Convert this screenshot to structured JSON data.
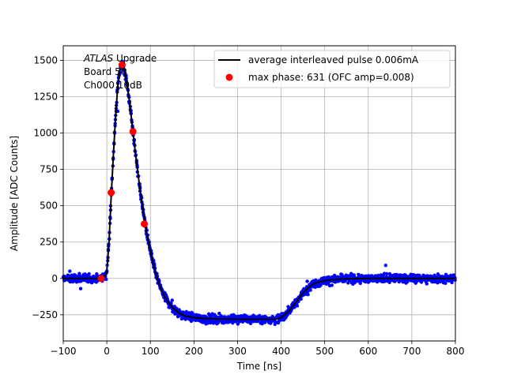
{
  "chart_data": {
    "type": "scatter",
    "xlabel": "Time [ns]",
    "ylabel": "Amplitude [ADC Counts]",
    "xlim": [
      -100,
      800
    ],
    "ylim": [
      -430,
      1600
    ],
    "grid": true,
    "x_ticks": [
      -100,
      0,
      100,
      200,
      300,
      400,
      500,
      600,
      700,
      800
    ],
    "y_ticks": [
      -250,
      0,
      250,
      500,
      750,
      1000,
      1250,
      1500
    ],
    "annotation": {
      "italic": "ATLAS",
      "line1_rest": " Upgrade",
      "line2": "Board 50",
      "line3": "Ch000 10dB"
    },
    "legend": {
      "placement": "top-right",
      "entries": [
        {
          "label": "average interleaved pulse 0.006mA",
          "marker": "line",
          "color": "#000000"
        },
        {
          "label": "max phase: 631 (OFC amp=0.008)",
          "marker": "dot",
          "color": "#ff0000"
        }
      ]
    },
    "series": [
      {
        "kind": "scatter-band",
        "color": "#0000ff",
        "noise": 20,
        "points": [
          [
            -100,
            0
          ],
          [
            -20,
            0
          ],
          [
            -5,
            10
          ],
          [
            0,
            50
          ],
          [
            5,
            250
          ],
          [
            10,
            560
          ],
          [
            15,
            850
          ],
          [
            20,
            1100
          ],
          [
            25,
            1320
          ],
          [
            30,
            1440
          ],
          [
            35,
            1480
          ],
          [
            40,
            1440
          ],
          [
            45,
            1360
          ],
          [
            50,
            1260
          ],
          [
            55,
            1140
          ],
          [
            60,
            1010
          ],
          [
            65,
            880
          ],
          [
            70,
            760
          ],
          [
            75,
            640
          ],
          [
            80,
            530
          ],
          [
            85,
            430
          ],
          [
            90,
            340
          ],
          [
            95,
            260
          ],
          [
            100,
            190
          ],
          [
            105,
            120
          ],
          [
            110,
            60
          ],
          [
            120,
            -40
          ],
          [
            130,
            -110
          ],
          [
            140,
            -160
          ],
          [
            150,
            -200
          ],
          [
            160,
            -225
          ],
          [
            170,
            -245
          ],
          [
            180,
            -258
          ],
          [
            200,
            -270
          ],
          [
            220,
            -275
          ],
          [
            250,
            -278
          ],
          [
            300,
            -280
          ],
          [
            350,
            -280
          ],
          [
            390,
            -279
          ],
          [
            400,
            -270
          ],
          [
            410,
            -245
          ],
          [
            420,
            -215
          ],
          [
            430,
            -180
          ],
          [
            440,
            -140
          ],
          [
            450,
            -100
          ],
          [
            460,
            -70
          ],
          [
            470,
            -45
          ],
          [
            480,
            -30
          ],
          [
            500,
            -15
          ],
          [
            520,
            -8
          ],
          [
            550,
            -3
          ],
          [
            600,
            0
          ],
          [
            700,
            0
          ],
          [
            800,
            0
          ]
        ]
      },
      {
        "kind": "line",
        "color": "#000000",
        "points": [
          [
            -100,
            0
          ],
          [
            -20,
            0
          ],
          [
            -5,
            10
          ],
          [
            0,
            50
          ],
          [
            5,
            250
          ],
          [
            10,
            560
          ],
          [
            15,
            850
          ],
          [
            20,
            1100
          ],
          [
            25,
            1320
          ],
          [
            30,
            1440
          ],
          [
            35,
            1480
          ],
          [
            40,
            1440
          ],
          [
            45,
            1360
          ],
          [
            50,
            1260
          ],
          [
            55,
            1140
          ],
          [
            60,
            1010
          ],
          [
            65,
            880
          ],
          [
            70,
            760
          ],
          [
            75,
            640
          ],
          [
            80,
            530
          ],
          [
            85,
            430
          ],
          [
            90,
            340
          ],
          [
            95,
            260
          ],
          [
            100,
            190
          ],
          [
            105,
            120
          ],
          [
            110,
            60
          ],
          [
            120,
            -40
          ],
          [
            130,
            -110
          ],
          [
            140,
            -160
          ],
          [
            150,
            -200
          ],
          [
            160,
            -225
          ],
          [
            170,
            -245
          ],
          [
            180,
            -258
          ],
          [
            200,
            -270
          ],
          [
            220,
            -275
          ],
          [
            250,
            -278
          ],
          [
            300,
            -280
          ],
          [
            350,
            -280
          ],
          [
            390,
            -279
          ],
          [
            400,
            -270
          ],
          [
            410,
            -245
          ],
          [
            420,
            -215
          ],
          [
            430,
            -180
          ],
          [
            440,
            -140
          ],
          [
            450,
            -100
          ],
          [
            460,
            -70
          ],
          [
            470,
            -45
          ],
          [
            480,
            -30
          ],
          [
            500,
            -15
          ],
          [
            520,
            -8
          ],
          [
            550,
            -3
          ],
          [
            600,
            0
          ],
          [
            700,
            0
          ],
          [
            800,
            0
          ]
        ]
      },
      {
        "kind": "markers",
        "color": "#ff0000",
        "points": [
          [
            -13,
            0
          ],
          [
            10,
            590
          ],
          [
            35,
            1470
          ],
          [
            60,
            1010
          ],
          [
            86,
            375
          ]
        ]
      }
    ]
  }
}
